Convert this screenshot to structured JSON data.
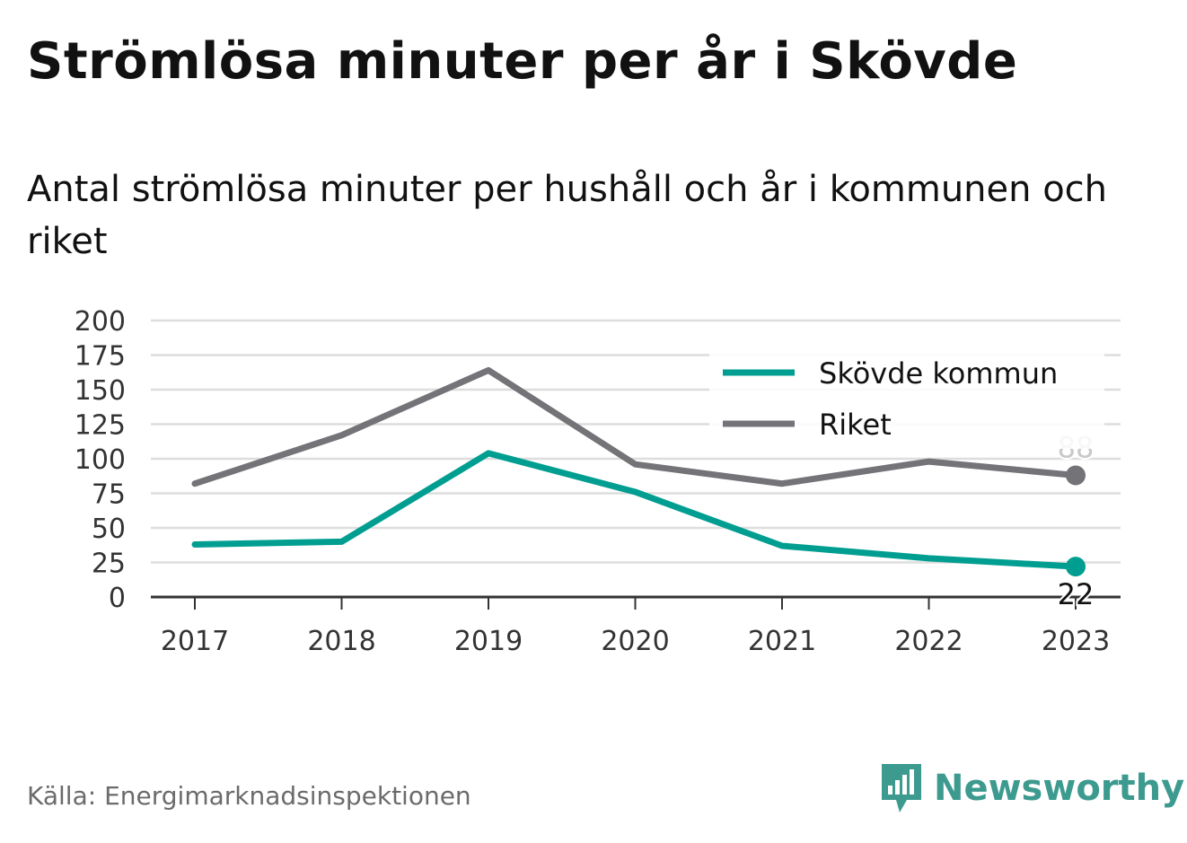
{
  "title": "Strömlösa minuter per år i Skövde",
  "subtitle": "Antal strömlösa minuter per hushåll och år i kommunen och riket",
  "source": "Källa: Energimarknadsinspektionen",
  "brand": "Newsworthy",
  "colors": {
    "skovde": "#009e91",
    "riket": "#737378",
    "grid": "#dddddd",
    "axis": "#333333",
    "brand": "#3d9a8f"
  },
  "chart_data": {
    "type": "line",
    "x": [
      "2017",
      "2018",
      "2019",
      "2020",
      "2021",
      "2022",
      "2023"
    ],
    "series": [
      {
        "name": "Skövde kommun",
        "values": [
          38,
          40,
          104,
          76,
          37,
          28,
          22
        ],
        "end_label": "22",
        "color": "#009e91"
      },
      {
        "name": "Riket",
        "values": [
          82,
          117,
          164,
          96,
          82,
          98,
          88
        ],
        "end_label": "88",
        "color": "#737378"
      }
    ],
    "yticks": [
      "0",
      "25",
      "50",
      "75",
      "100",
      "125",
      "150",
      "175",
      "200"
    ],
    "ylim": [
      0,
      200
    ],
    "grid": true,
    "legend": "top-right"
  }
}
